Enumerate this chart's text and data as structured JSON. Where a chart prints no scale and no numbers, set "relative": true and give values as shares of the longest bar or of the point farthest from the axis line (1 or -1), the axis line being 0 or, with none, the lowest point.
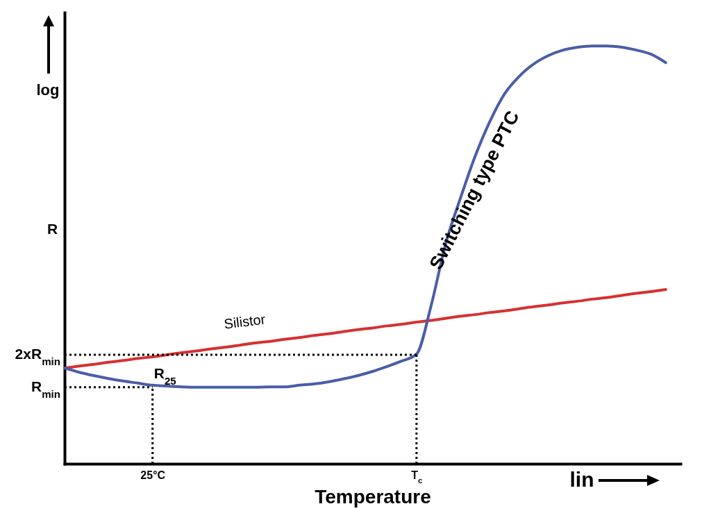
{
  "chart_data": {
    "type": "line",
    "relative": true,
    "xlabel": "Temperature",
    "ylabel": "R",
    "categories": [
      null,
      null,
      null,
      null,
      null,
      null,
      "25°C",
      null,
      null,
      null,
      null,
      null,
      null,
      null,
      null,
      null,
      null,
      null,
      null,
      null,
      null,
      null,
      null,
      null,
      "T$_{c}$",
      null,
      null,
      null,
      null,
      null,
      null,
      null,
      null,
      null,
      null,
      null,
      null,
      null,
      null,
      null,
      null,
      null,
      null
    ],
    "series": [
      {
        "name": "Silistor",
        "color": "#d63031",
        "values": [
          0.229,
          0.234,
          0.238,
          0.243,
          0.247,
          0.252,
          0.256,
          0.261,
          0.266,
          0.27,
          0.275,
          0.279,
          0.284,
          0.289,
          0.293,
          0.298,
          0.302,
          0.307,
          0.311,
          0.316,
          0.321,
          0.325,
          0.33,
          0.334,
          0.339,
          0.343,
          0.348,
          0.353,
          0.357,
          0.362,
          0.366,
          0.371,
          0.376,
          0.38,
          0.385,
          0.389,
          0.394,
          0.398,
          0.403,
          0.408,
          0.412,
          0.417,
          null
        ]
      },
      {
        "name": "Switching type PTC",
        "color": "#4a5da8",
        "values": [
          0.229,
          0.219,
          0.211,
          0.204,
          0.198,
          0.193,
          0.188,
          0.186,
          0.184,
          0.183,
          0.183,
          0.183,
          0.183,
          0.183,
          0.184,
          0.184,
          0.188,
          0.191,
          0.196,
          0.203,
          0.211,
          0.221,
          0.233,
          0.246,
          0.262,
          0.379,
          0.528,
          0.636,
          0.736,
          0.819,
          0.885,
          0.927,
          0.957,
          0.977,
          0.99,
          0.997,
          1.0,
          1.0,
          0.997,
          0.99,
          0.98,
          0.96,
          null
        ]
      }
    ],
    "ref_lines": [
      {
        "axis": "y",
        "value": 0.183,
        "label": "R$_{min}$",
        "line_style": "dotted"
      },
      {
        "axis": "x",
        "value": "25°C",
        "line_style": "dotted"
      },
      {
        "axis": "y",
        "value": 0.261,
        "label": "2xR$_{min}$",
        "line_style": "dotted"
      },
      {
        "axis": "x",
        "value": "T$_{c}$",
        "line_style": "dotted"
      }
    ],
    "annotations": [
      "log",
      "lin",
      {
        "text": "R$_{25}$",
        "x": "25°C",
        "y": 0.188
      }
    ]
  }
}
